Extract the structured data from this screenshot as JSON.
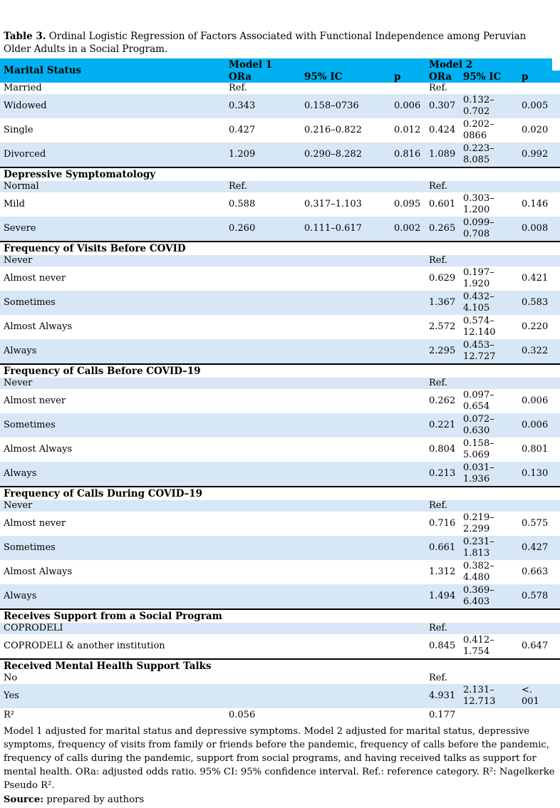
{
  "title": {
    "label": "Table 3.",
    "text": " Ordinal Logistic Regression of Factors Associated with Functional Independence among Peruvian Older Adults in a Social Program."
  },
  "colors": {
    "header_bg": "#00B0F0",
    "band_bg": "#D7E7F5"
  },
  "table": {
    "header": {
      "col0": "Marital Status",
      "model1": "Model 1",
      "model2": "Model 2",
      "sub": [
        "ORa",
        "95% IC",
        "p",
        "ORa",
        "95% IC",
        "p"
      ]
    },
    "sections": [
      {
        "header": null,
        "rows": [
          {
            "label": "Married",
            "m1_or": "Ref.",
            "m1_ic": "",
            "m1_p": "",
            "m2_or": "Ref.",
            "m2_ic": "",
            "m2_p": "",
            "shaded": false
          },
          {
            "label": "Widowed",
            "m1_or": "0.343",
            "m1_ic": "0.158–0736",
            "m1_p": "0.006",
            "m2_or": "0.307",
            "m2_ic": "0.132–\n0.702",
            "m2_p": "0.005",
            "shaded": true
          },
          {
            "label": "Single",
            "m1_or": "0.427",
            "m1_ic": "0.216–0.822",
            "m1_p": "0.012",
            "m2_or": "0.424",
            "m2_ic": "0.202–\n0866",
            "m2_p": "0.020",
            "shaded": false
          },
          {
            "label": "Divorced",
            "m1_or": "1.209",
            "m1_ic": "0.290–8.282",
            "m1_p": "0.816",
            "m2_or": "1.089",
            "m2_ic": "0.223–\n8.085",
            "m2_p": "0.992",
            "shaded": true
          }
        ]
      },
      {
        "header": "Depressive Symptomatology",
        "rows": [
          {
            "label": "Normal",
            "m1_or": "Ref.",
            "m1_ic": "",
            "m1_p": "",
            "m2_or": "Ref.",
            "m2_ic": "",
            "m2_p": "",
            "shaded": true
          },
          {
            "label": "Mild",
            "m1_or": "0.588",
            "m1_ic": "0.317–1.103",
            "m1_p": "0.095",
            "m2_or": "0.601",
            "m2_ic": "0.303–\n1.200",
            "m2_p": "0.146",
            "shaded": false
          },
          {
            "label": "Severe",
            "m1_or": "0.260",
            "m1_ic": "0.111–0.617",
            "m1_p": "0.002",
            "m2_or": "0.265",
            "m2_ic": "0.099–\n0.708",
            "m2_p": "0.008",
            "shaded": true
          }
        ]
      },
      {
        "header": "Frequency of Visits Before COVID",
        "rows": [
          {
            "label": "Never",
            "m1_or": "",
            "m1_ic": "",
            "m1_p": "",
            "m2_or": "Ref.",
            "m2_ic": "",
            "m2_p": "",
            "shaded": true
          },
          {
            "label": "Almost never",
            "m1_or": "",
            "m1_ic": "",
            "m1_p": "",
            "m2_or": "0.629",
            "m2_ic": "0.197–\n1.920",
            "m2_p": "0.421",
            "shaded": false
          },
          {
            "label": "Sometimes",
            "m1_or": "",
            "m1_ic": "",
            "m1_p": "",
            "m2_or": "1.367",
            "m2_ic": "0.432–\n4.105",
            "m2_p": "0.583",
            "shaded": true
          },
          {
            "label": "Almost Always",
            "m1_or": "",
            "m1_ic": "",
            "m1_p": "",
            "m2_or": "2.572",
            "m2_ic": "0.574–\n12.140",
            "m2_p": "0.220",
            "shaded": false
          },
          {
            "label": "Always",
            "m1_or": "",
            "m1_ic": "",
            "m1_p": "",
            "m2_or": "2.295",
            "m2_ic": "0.453–\n12.727",
            "m2_p": "0.322",
            "shaded": true
          }
        ]
      },
      {
        "header": "Frequency of Calls Before COVID–19",
        "rows": [
          {
            "label": "Never",
            "m1_or": "",
            "m1_ic": "",
            "m1_p": "",
            "m2_or": "Ref.",
            "m2_ic": "",
            "m2_p": "",
            "shaded": true
          },
          {
            "label": "Almost never",
            "m1_or": "",
            "m1_ic": "",
            "m1_p": "",
            "m2_or": "0.262",
            "m2_ic": "0.097–\n0.654",
            "m2_p": "0.006",
            "shaded": false
          },
          {
            "label": "Sometimes",
            "m1_or": "",
            "m1_ic": "",
            "m1_p": "",
            "m2_or": "0.221",
            "m2_ic": "0.072–\n0.630",
            "m2_p": "0.006",
            "shaded": true
          },
          {
            "label": "Almost Always",
            "m1_or": "",
            "m1_ic": "",
            "m1_p": "",
            "m2_or": "0.804",
            "m2_ic": "0.158–\n5.069",
            "m2_p": "0.801",
            "shaded": false
          },
          {
            "label": "Always",
            "m1_or": "",
            "m1_ic": "",
            "m1_p": "",
            "m2_or": "0.213",
            "m2_ic": "0.031–\n1.936",
            "m2_p": "0.130",
            "shaded": true
          }
        ]
      },
      {
        "header": "Frequency of Calls During COVID–19",
        "rows": [
          {
            "label": "Never",
            "m1_or": "",
            "m1_ic": "",
            "m1_p": "",
            "m2_or": "Ref.",
            "m2_ic": "",
            "m2_p": "",
            "shaded": true
          },
          {
            "label": "Almost never",
            "m1_or": "",
            "m1_ic": "",
            "m1_p": "",
            "m2_or": "0.716",
            "m2_ic": "0.219–\n2.299",
            "m2_p": "0.575",
            "shaded": false
          },
          {
            "label": "Sometimes",
            "m1_or": "",
            "m1_ic": "",
            "m1_p": "",
            "m2_or": "0.661",
            "m2_ic": "0.231–\n1.813",
            "m2_p": "0.427",
            "shaded": true
          },
          {
            "label": "Almost Always",
            "m1_or": "",
            "m1_ic": "",
            "m1_p": "",
            "m2_or": "1.312",
            "m2_ic": "0.382–\n4.480",
            "m2_p": "0.663",
            "shaded": false
          },
          {
            "label": "Always",
            "m1_or": "",
            "m1_ic": "",
            "m1_p": "",
            "m2_or": "1.494",
            "m2_ic": "0.369–\n6.403",
            "m2_p": "0.578",
            "shaded": true
          }
        ]
      },
      {
        "header": "Receives Support from a Social Program",
        "rows": [
          {
            "label": "COPRODELI",
            "m1_or": "",
            "m1_ic": "",
            "m1_p": "",
            "m2_or": "Ref.",
            "m2_ic": "",
            "m2_p": "",
            "shaded": true
          },
          {
            "label": "COPRODELI & another institution",
            "m1_or": "",
            "m1_ic": "",
            "m1_p": "",
            "m2_or": "0.845",
            "m2_ic": "0.412–\n1.754",
            "m2_p": "0.647",
            "shaded": false
          }
        ]
      },
      {
        "header": "Received Mental Health Support Talks",
        "rows": [
          {
            "label": "No",
            "m1_or": "",
            "m1_ic": "",
            "m1_p": "",
            "m2_or": "Ref.",
            "m2_ic": "",
            "m2_p": "",
            "shaded": false
          },
          {
            "label": "Yes",
            "m1_or": "",
            "m1_ic": "",
            "m1_p": "",
            "m2_or": "4.931",
            "m2_ic": "2.131–\n12.713",
            "m2_p": "<.\n001",
            "shaded": true
          }
        ]
      }
    ],
    "r2_row": {
      "label": "R²",
      "m1_or": "0.056",
      "m2_or": "0.177"
    }
  },
  "footnote": "Model 1 adjusted for marital status and depressive symptoms. Model 2 adjusted for marital status, depressive symptoms, frequency of visits from family or friends before the pandemic, frequency of calls before the pandemic, frequency of calls during the pandemic, support from social programs, and having received talks as support for mental health. ORa: adjusted odds ratio. 95% CI: 95% confidence interval. Ref.: reference category. R²: Nagelkerke Pseudo R².",
  "source": {
    "label": "Source:",
    "text": " prepared by authors"
  }
}
